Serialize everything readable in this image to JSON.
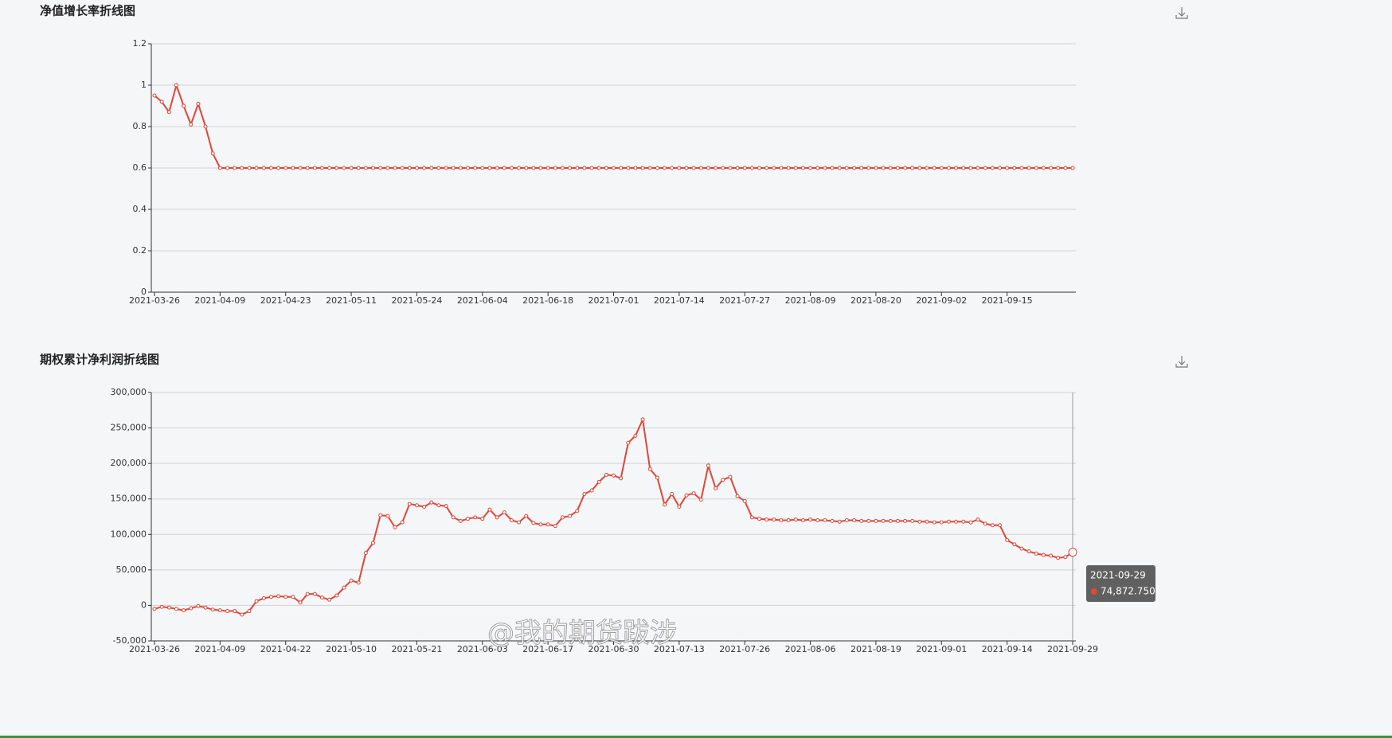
{
  "chart_data": [
    {
      "type": "line",
      "title": "净值增长率折线图",
      "color": "#e0473a",
      "grid": true,
      "categories": [
        "2021-03-26",
        null,
        null,
        null,
        null,
        null,
        null,
        null,
        null,
        "2021-04-09",
        null,
        null,
        null,
        null,
        null,
        null,
        null,
        null,
        "2021-04-23",
        null,
        null,
        null,
        null,
        null,
        null,
        null,
        null,
        "2021-05-11",
        null,
        null,
        null,
        null,
        null,
        null,
        null,
        null,
        "2021-05-24",
        null,
        null,
        null,
        null,
        null,
        null,
        null,
        null,
        "2021-06-04",
        null,
        null,
        null,
        null,
        null,
        null,
        null,
        null,
        "2021-06-18",
        null,
        null,
        null,
        null,
        null,
        null,
        null,
        null,
        "2021-07-01",
        null,
        null,
        null,
        null,
        null,
        null,
        null,
        null,
        "2021-07-14",
        null,
        null,
        null,
        null,
        null,
        null,
        null,
        null,
        "2021-07-27",
        null,
        null,
        null,
        null,
        null,
        null,
        null,
        null,
        "2021-08-09",
        null,
        null,
        null,
        null,
        null,
        null,
        null,
        null,
        "2021-08-20",
        null,
        null,
        null,
        null,
        null,
        null,
        null,
        null,
        "2021-09-02",
        null,
        null,
        null,
        null,
        null,
        null,
        null,
        null,
        "2021-09-15",
        null,
        null,
        null,
        null,
        null,
        null,
        null,
        null,
        null
      ],
      "values": [
        0.95,
        0.92,
        0.87,
        1,
        0.9,
        0.81,
        0.91,
        0.8,
        0.67,
        0.6,
        0.6,
        0.6,
        0.6,
        0.6,
        0.6,
        0.6,
        0.6,
        0.6,
        0.6,
        0.6,
        0.6,
        0.6,
        0.6,
        0.6,
        0.6,
        0.6,
        0.6,
        0.6,
        0.6,
        0.6,
        0.6,
        0.6,
        0.6,
        0.6,
        0.6,
        0.6,
        0.6,
        0.6,
        0.6,
        0.6,
        0.6,
        0.6,
        0.6,
        0.6,
        0.6,
        0.6,
        0.6,
        0.6,
        0.6,
        0.6,
        0.6,
        0.6,
        0.6,
        0.6,
        0.6,
        0.6,
        0.6,
        0.6,
        0.6,
        0.6,
        0.6,
        0.6,
        0.6,
        0.6,
        0.6,
        0.6,
        0.6,
        0.6,
        0.6,
        0.6,
        0.6,
        0.6,
        0.6,
        0.6,
        0.6,
        0.6,
        0.6,
        0.6,
        0.6,
        0.6,
        0.6,
        0.6,
        0.6,
        0.6,
        0.6,
        0.6,
        0.6,
        0.6,
        0.6,
        0.6,
        0.6,
        0.6,
        0.6,
        0.6,
        0.6,
        0.6,
        0.6,
        0.6,
        0.6,
        0.6,
        0.6,
        0.6,
        0.6,
        0.6,
        0.6,
        0.6,
        0.6,
        0.6,
        0.6,
        0.6,
        0.6,
        0.6,
        0.6,
        0.6,
        0.6,
        0.6,
        0.6,
        0.6,
        0.6,
        0.6,
        0.6,
        0.6,
        0.6,
        0.6,
        0.6,
        0.6,
        0.6
      ],
      "ylim": [
        0,
        1.2
      ],
      "yticks": [
        0,
        0.2,
        0.4,
        0.6,
        0.8,
        1,
        1.2
      ]
    },
    {
      "type": "line",
      "title": "期权累计净利润折线图",
      "color": "#e0473a",
      "grid": true,
      "categories": [
        "2021-03-26",
        null,
        null,
        null,
        null,
        null,
        null,
        null,
        null,
        "2021-04-09",
        null,
        null,
        null,
        null,
        null,
        null,
        null,
        null,
        "2021-04-22",
        null,
        null,
        null,
        null,
        null,
        null,
        null,
        null,
        "2021-05-10",
        null,
        null,
        null,
        null,
        null,
        null,
        null,
        null,
        "2021-05-21",
        null,
        null,
        null,
        null,
        null,
        null,
        null,
        null,
        "2021-06-03",
        null,
        null,
        null,
        null,
        null,
        null,
        null,
        null,
        "2021-06-17",
        null,
        null,
        null,
        null,
        null,
        null,
        null,
        null,
        "2021-06-30",
        null,
        null,
        null,
        null,
        null,
        null,
        null,
        null,
        "2021-07-13",
        null,
        null,
        null,
        null,
        null,
        null,
        null,
        null,
        "2021-07-26",
        null,
        null,
        null,
        null,
        null,
        null,
        null,
        null,
        "2021-08-06",
        null,
        null,
        null,
        null,
        null,
        null,
        null,
        null,
        "2021-08-19",
        null,
        null,
        null,
        null,
        null,
        null,
        null,
        null,
        "2021-09-01",
        null,
        null,
        null,
        null,
        null,
        null,
        null,
        null,
        "2021-09-14",
        null,
        null,
        null,
        null,
        null,
        null,
        null,
        null,
        "2021-09-29"
      ],
      "values": [
        -5000,
        -2000,
        -3000,
        -5000,
        -7000,
        -4000,
        -1000,
        -3000,
        -6000,
        -7000,
        -8000,
        -8000,
        -13000,
        -8000,
        6000,
        10000,
        12000,
        13000,
        12000,
        12000,
        4000,
        16000,
        16000,
        11000,
        8000,
        14000,
        25000,
        35000,
        32000,
        74000,
        88000,
        127000,
        126000,
        110000,
        117000,
        143000,
        141000,
        139000,
        145000,
        141000,
        140000,
        124000,
        119000,
        122000,
        124000,
        122000,
        135000,
        124000,
        131000,
        120000,
        117000,
        126000,
        116000,
        114000,
        114000,
        112000,
        124000,
        126000,
        133000,
        157000,
        162000,
        174000,
        184000,
        183000,
        179000,
        229000,
        239000,
        262000,
        192000,
        180000,
        142000,
        157000,
        139000,
        155000,
        158000,
        149000,
        197000,
        165000,
        177000,
        181000,
        154000,
        147000,
        124000,
        122000,
        121000,
        121000,
        120000,
        120000,
        121000,
        120000,
        121000,
        120000,
        120000,
        119000,
        118000,
        120000,
        120000,
        119000,
        119000,
        119000,
        119000,
        119000,
        119000,
        119000,
        119000,
        118000,
        118000,
        117000,
        117000,
        118000,
        118000,
        118000,
        117000,
        121000,
        115000,
        113000,
        113000,
        92000,
        86000,
        80000,
        76000,
        73000,
        71000,
        70000,
        67000,
        68000,
        74872.75
      ],
      "ylim": [
        -50000,
        300000
      ],
      "yticks": [
        {
          "value": -50000,
          "label": "-50,000"
        },
        0,
        {
          "value": 50000,
          "label": "50,000"
        },
        {
          "value": 100000,
          "label": "100,000"
        },
        {
          "value": 150000,
          "label": "150,000"
        },
        {
          "value": 200000,
          "label": "200,000"
        },
        {
          "value": 250000,
          "label": "250,000"
        },
        {
          "value": 300000,
          "label": "300,000"
        }
      ],
      "tooltip": {
        "label": "74,872.750"
      }
    }
  ],
  "watermark": "@我的期货跋涉"
}
